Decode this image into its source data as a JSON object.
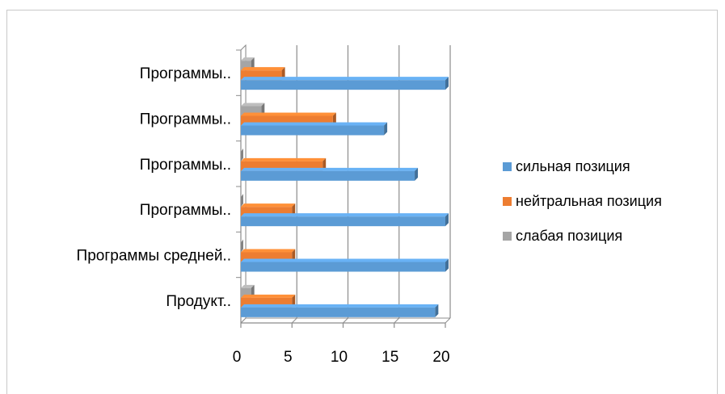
{
  "chart_data": {
    "type": "bar",
    "orientation": "horizontal",
    "style": "3d-clustered",
    "categories": [
      "Программы..",
      "Программы..",
      "Программы..",
      "Программы..",
      "Программы средней..",
      "Продукт.."
    ],
    "series": [
      {
        "name": "слабая позиция",
        "color": "#a5a5a5",
        "values": [
          1,
          2,
          0,
          0,
          0,
          1
        ]
      },
      {
        "name": "нейтральная позиция",
        "color": "#ed7d31",
        "values": [
          4,
          9,
          8,
          5,
          5,
          5
        ]
      },
      {
        "name": "сильная позиция",
        "color": "#5b9bd5",
        "values": [
          20,
          14,
          17,
          20,
          20,
          19
        ]
      }
    ],
    "x_ticks": [
      "0",
      "5",
      "10",
      "15",
      "20"
    ],
    "xlim": [
      0,
      20
    ],
    "grid": true,
    "legend_position": "right"
  }
}
